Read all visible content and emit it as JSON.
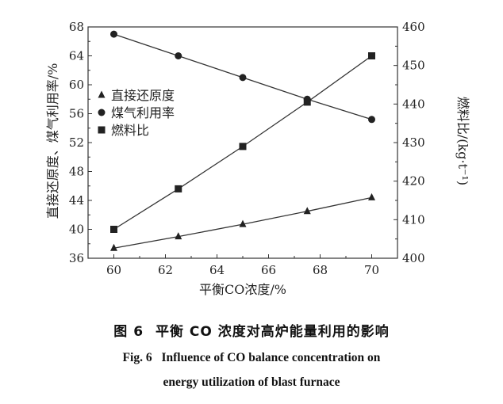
{
  "chart_data": {
    "type": "line",
    "xlabel": "平衡CO浓度/%",
    "ylabel_left": "直接还原度、煤气利用率/%",
    "ylabel_right": "燃料比/(kg·t⁻¹)",
    "x_ticks": [
      "60",
      "62",
      "64",
      "66",
      "68",
      "70"
    ],
    "xlim": [
      59,
      71
    ],
    "y_left_ticks": [
      "36",
      "40",
      "44",
      "48",
      "52",
      "56",
      "60",
      "64",
      "68"
    ],
    "ylim_left": [
      36,
      68
    ],
    "y_right_ticks": [
      "400",
      "410",
      "420",
      "430",
      "440",
      "450",
      "460"
    ],
    "ylim_right": [
      400,
      460
    ],
    "legend_position": "left-middle",
    "grid": false,
    "series": [
      {
        "name": "直接还原度",
        "axis": "left",
        "marker": "triangle",
        "x": [
          60,
          62.5,
          65,
          67.5,
          70
        ],
        "values": [
          37.4,
          39.0,
          40.7,
          42.5,
          44.4
        ]
      },
      {
        "name": "煤气利用率",
        "axis": "left",
        "marker": "circle",
        "x": [
          60,
          62.5,
          65,
          67.5,
          70
        ],
        "values": [
          67.0,
          64.0,
          61.0,
          58.0,
          55.2
        ]
      },
      {
        "name": "燃料比",
        "axis": "right",
        "marker": "square",
        "x": [
          60,
          62.5,
          65,
          67.5,
          70
        ],
        "values": [
          407.5,
          418,
          429,
          440.5,
          452.5
        ]
      }
    ]
  },
  "caption": {
    "fig_label_cn": "图 6",
    "title_cn": "平衡 CO 浓度对高炉能量利用的影响",
    "fig_label_en": "Fig. 6",
    "title_en_line1": "Influence of CO balance concentration on",
    "title_en_line2": "energy utilization of blast furnace"
  }
}
